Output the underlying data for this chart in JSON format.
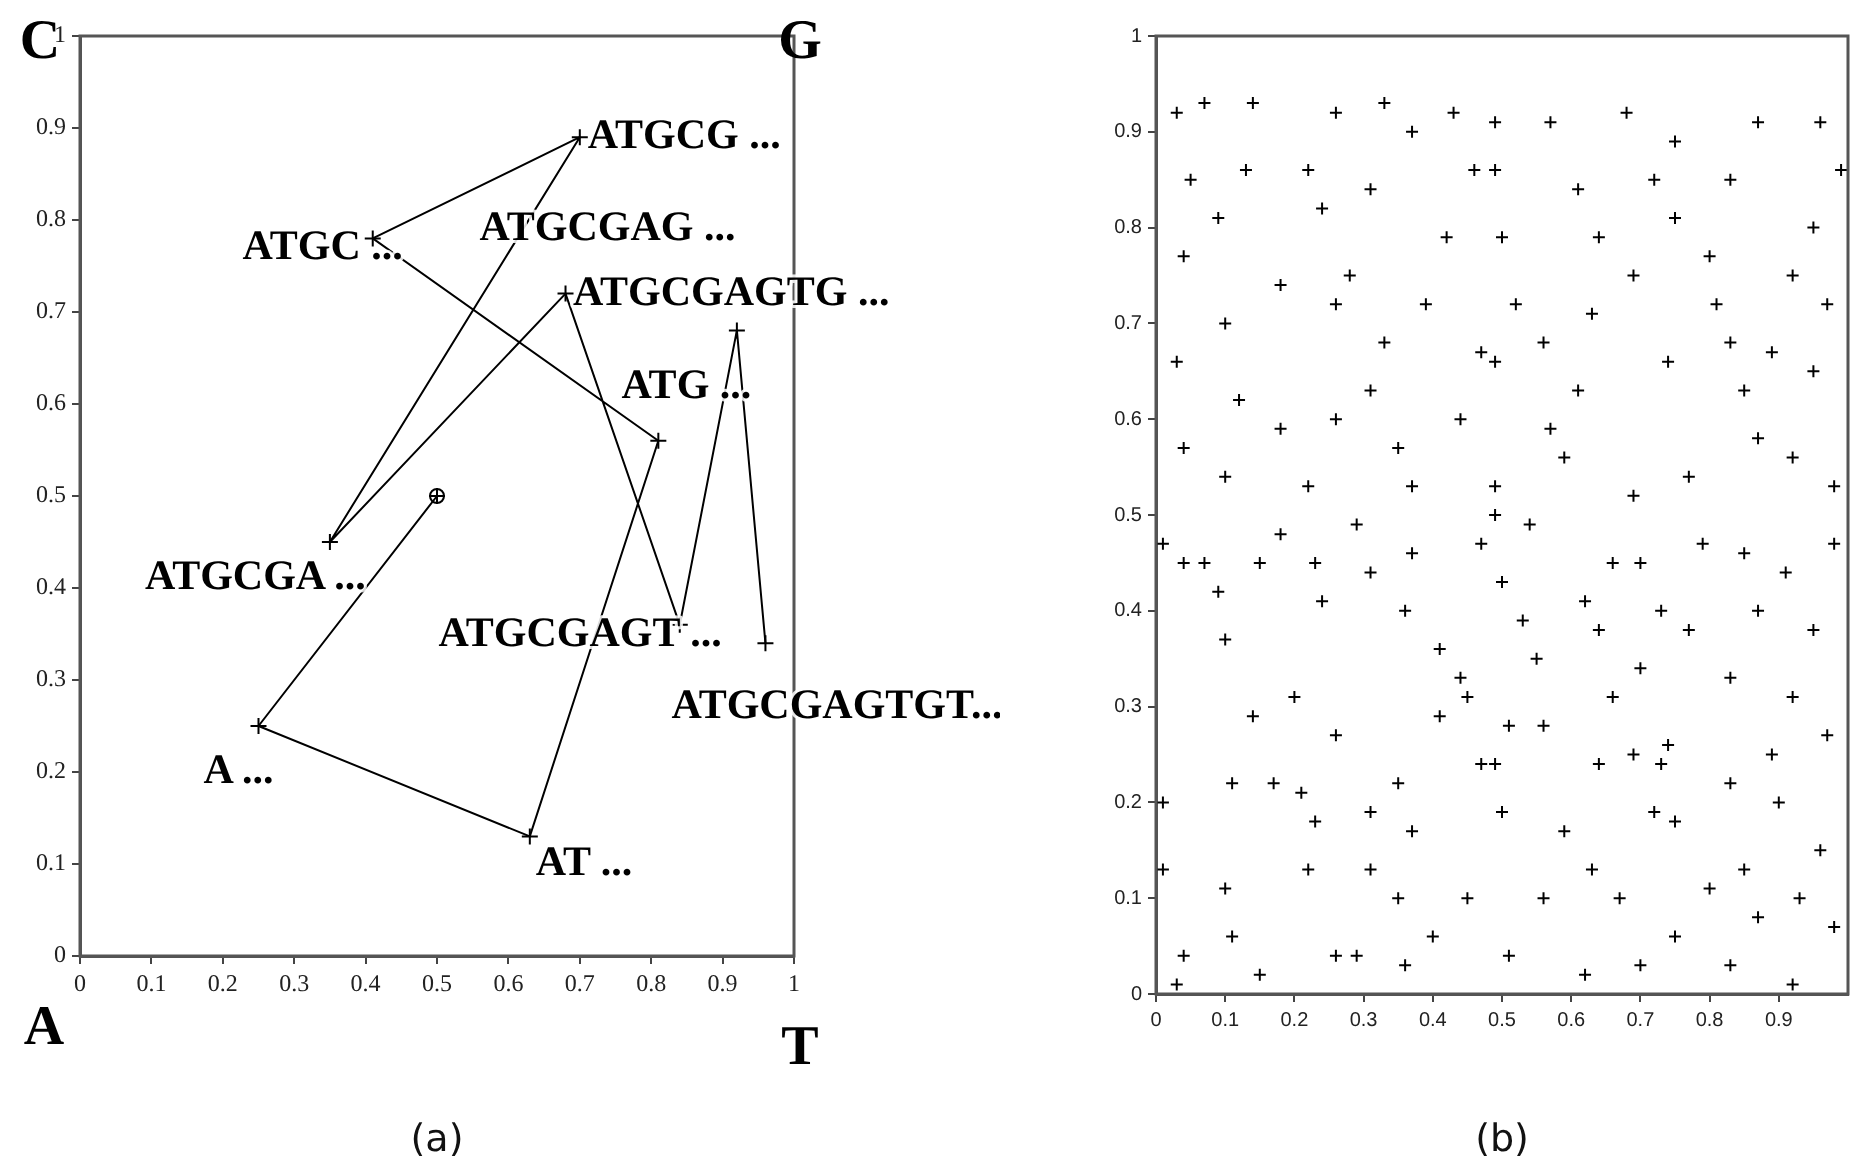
{
  "chart_data": [
    {
      "type": "line",
      "xlabel": "(a)",
      "xlim": [
        0,
        1
      ],
      "xticks": [
        0,
        0.1,
        0.2,
        0.3,
        0.4,
        0.5,
        0.6,
        0.7,
        0.8,
        0.9,
        1
      ],
      "ylim": [
        0,
        1
      ],
      "yticks": [
        0,
        0.1,
        0.2,
        0.3,
        0.4,
        0.5,
        0.6,
        0.7,
        0.8,
        0.9,
        1
      ],
      "grid": false,
      "legend": false,
      "series": [
        {
          "color": "#000000",
          "marker": "cross",
          "x": [
            0.5,
            0.25,
            0.63,
            0.81,
            0.41,
            0.7,
            0.35,
            0.68,
            0.84,
            0.92,
            0.96
          ],
          "values": [
            0.5,
            0.25,
            0.13,
            0.56,
            0.78,
            0.89,
            0.45,
            0.72,
            0.36,
            0.68,
            0.34
          ]
        },
        {
          "type": "scatter",
          "color": "#000000",
          "marker": "circle",
          "x": [
            0.5
          ],
          "values": [
            0.5
          ]
        }
      ],
      "annotations": [
        "C",
        "G",
        "A",
        "T",
        {
          "text": "A ...",
          "x": 0.25,
          "y": 0.25
        },
        {
          "text": "AT ...",
          "x": 0.63,
          "y": 0.13
        },
        {
          "text": "ATG ...",
          "x": 0.81,
          "y": 0.56
        },
        {
          "text": "ATGC ...",
          "x": 0.41,
          "y": 0.78
        },
        {
          "text": "ATGCG ...",
          "x": 0.7,
          "y": 0.89
        },
        {
          "text": "ATGCGA ...",
          "x": 0.35,
          "y": 0.45
        },
        {
          "text": "ATGCGAG ...",
          "x": 0.68,
          "y": 0.72
        },
        {
          "text": "ATGCGAGT ...",
          "x": 0.84,
          "y": 0.36
        },
        {
          "text": "ATGCGAGTG ...",
          "x": 0.92,
          "y": 0.68
        },
        {
          "text": "ATGCGAGTGT...",
          "x": 0.96,
          "y": 0.34
        }
      ]
    },
    {
      "type": "scatter",
      "xlabel": "(b)",
      "xlim": [
        0,
        1
      ],
      "xticks": [
        0,
        0.1,
        0.2,
        0.3,
        0.4,
        0.5,
        0.6,
        0.7,
        0.8,
        0.9
      ],
      "ylim": [
        0,
        1
      ],
      "yticks": [
        0,
        0.1,
        0.2,
        0.3,
        0.4,
        0.5,
        0.6,
        0.7,
        0.8,
        0.9,
        1
      ],
      "grid": false,
      "legend": false,
      "marker": "cross",
      "color": "#000000",
      "x": [
        0.01,
        0.04,
        0.07,
        0.09,
        0.1,
        0.15,
        0.18,
        0.23,
        0.24,
        0.31,
        0.36,
        0.41,
        0.44,
        0.45,
        0.47,
        0.26,
        0.2,
        0.14,
        0.11,
        0.17,
        0.21,
        0.23,
        0.22,
        0.1,
        0.11,
        0.04,
        0.03,
        0.01,
        0.01,
        0.26,
        0.29,
        0.36,
        0.4,
        0.45,
        0.35,
        0.31,
        0.37,
        0.31,
        0.35,
        0.41,
        0.47,
        0.37,
        0.29,
        0.15,
        0.49,
        0.54,
        0.5,
        0.53,
        0.55,
        0.51,
        0.56,
        0.49,
        0.5,
        0.59,
        0.56,
        0.51,
        0.62,
        0.63,
        0.67,
        0.7,
        0.64,
        0.69,
        0.73,
        0.72,
        0.75,
        0.74,
        0.66,
        0.7,
        0.64,
        0.62,
        0.7,
        0.66,
        0.73,
        0.77,
        0.79,
        0.85,
        0.91,
        0.98,
        0.87,
        0.95,
        0.83,
        0.92,
        0.97,
        0.89,
        0.83,
        0.9,
        0.96,
        0.85,
        0.8,
        0.87,
        0.93,
        0.98,
        0.83,
        0.92,
        0.75,
        0.03,
        0.07,
        0.14,
        0.26,
        0.33,
        0.37,
        0.43,
        0.13,
        0.22,
        0.05,
        0.09,
        0.24,
        0.31,
        0.42,
        0.46,
        0.04,
        0.1,
        0.18,
        0.28,
        0.26,
        0.33,
        0.39,
        0.03,
        0.12,
        0.04,
        0.18,
        0.26,
        0.31,
        0.35,
        0.44,
        0.47,
        0.1,
        0.22,
        0.37,
        0.49,
        0.57,
        0.68,
        0.75,
        0.87,
        0.96,
        0.49,
        0.61,
        0.72,
        0.83,
        0.99,
        0.5,
        0.64,
        0.75,
        0.95,
        0.92,
        0.69,
        0.8,
        0.52,
        0.63,
        0.81,
        0.97,
        0.56,
        0.83,
        0.89,
        0.49,
        0.61,
        0.74,
        0.85,
        0.95,
        0.57,
        0.87,
        0.59,
        0.77,
        0.92,
        0.49,
        0.69,
        0.98
      ],
      "values": [
        0.47,
        0.45,
        0.45,
        0.42,
        0.37,
        0.45,
        0.48,
        0.45,
        0.41,
        0.44,
        0.4,
        0.36,
        0.33,
        0.31,
        0.24,
        0.27,
        0.31,
        0.29,
        0.22,
        0.22,
        0.21,
        0.18,
        0.13,
        0.11,
        0.06,
        0.04,
        0.01,
        0.13,
        0.2,
        0.04,
        0.04,
        0.03,
        0.06,
        0.1,
        0.1,
        0.13,
        0.17,
        0.19,
        0.22,
        0.29,
        0.47,
        0.46,
        0.49,
        0.02,
        0.5,
        0.49,
        0.43,
        0.39,
        0.35,
        0.28,
        0.28,
        0.24,
        0.19,
        0.17,
        0.1,
        0.04,
        0.02,
        0.13,
        0.1,
        0.03,
        0.24,
        0.25,
        0.24,
        0.19,
        0.18,
        0.26,
        0.31,
        0.34,
        0.38,
        0.41,
        0.45,
        0.45,
        0.4,
        0.38,
        0.47,
        0.46,
        0.44,
        0.47,
        0.4,
        0.38,
        0.33,
        0.31,
        0.27,
        0.25,
        0.22,
        0.2,
        0.15,
        0.13,
        0.11,
        0.08,
        0.1,
        0.07,
        0.03,
        0.01,
        0.06,
        0.92,
        0.93,
        0.93,
        0.92,
        0.93,
        0.9,
        0.92,
        0.86,
        0.86,
        0.85,
        0.81,
        0.82,
        0.84,
        0.79,
        0.86,
        0.77,
        0.7,
        0.74,
        0.75,
        0.72,
        0.68,
        0.72,
        0.66,
        0.62,
        0.57,
        0.59,
        0.6,
        0.63,
        0.57,
        0.6,
        0.67,
        0.54,
        0.53,
        0.53,
        0.91,
        0.91,
        0.92,
        0.89,
        0.91,
        0.91,
        0.86,
        0.84,
        0.85,
        0.85,
        0.86,
        0.79,
        0.79,
        0.81,
        0.8,
        0.75,
        0.75,
        0.77,
        0.72,
        0.71,
        0.72,
        0.72,
        0.68,
        0.68,
        0.67,
        0.66,
        0.63,
        0.66,
        0.63,
        0.65,
        0.59,
        0.58,
        0.56,
        0.54,
        0.56,
        0.53,
        0.52,
        0.53
      ]
    }
  ]
}
